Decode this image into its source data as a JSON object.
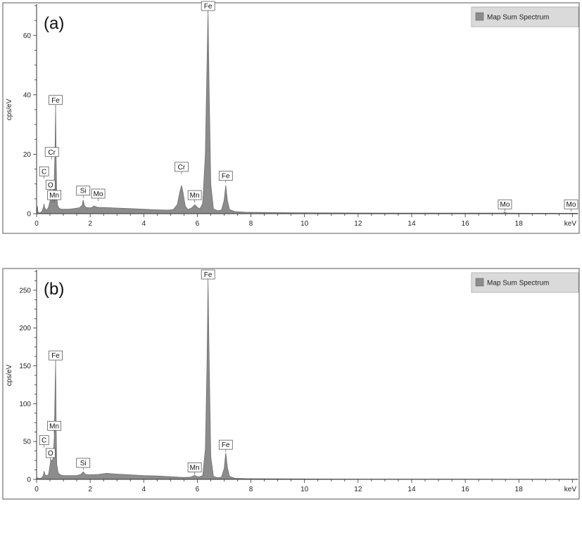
{
  "chart_data": [
    {
      "type": "area",
      "panel_label": "(a)",
      "legend": "Map Sum Spectrum",
      "ylabel": "cps/eV",
      "xunit": "keV",
      "xlim": [
        0,
        20.2
      ],
      "ylim": [
        0,
        70
      ],
      "xticks": [
        0,
        2,
        4,
        6,
        8,
        10,
        12,
        14,
        16,
        18
      ],
      "yticks": [
        0,
        20,
        40,
        60
      ],
      "fill_color": "#8c8c8c",
      "series": [
        {
          "x": [
            0,
            0.03,
            0.05,
            0.08,
            0.1,
            0.12,
            0.15,
            0.2,
            0.25,
            0.28,
            0.3,
            0.33,
            0.36,
            0.4,
            0.45,
            0.5,
            0.52,
            0.55,
            0.58,
            0.62,
            0.66,
            0.69,
            0.71,
            0.73,
            0.75,
            0.78,
            0.82,
            0.88,
            0.95,
            1.05,
            1.2,
            1.4,
            1.6,
            1.7,
            1.74,
            1.78,
            1.85,
            1.95,
            2.05,
            2.15,
            2.25,
            2.35,
            2.5,
            3.0,
            3.5,
            4.0,
            4.5,
            4.9,
            5.1,
            5.25,
            5.35,
            5.41,
            5.47,
            5.55,
            5.65,
            5.8,
            5.9,
            5.99,
            6.1,
            6.2,
            6.3,
            6.36,
            6.4,
            6.44,
            6.5,
            6.6,
            6.75,
            6.9,
            7.0,
            7.06,
            7.12,
            7.2,
            7.4,
            7.8,
            8.5,
            9.5,
            11,
            13,
            15,
            17.4,
            17.48,
            17.56,
            18.5,
            20.2
          ],
          "y": [
            0.4,
            2.5,
            0.8,
            0.3,
            0.2,
            0.3,
            0.4,
            0.8,
            2.0,
            3.3,
            2.0,
            1.6,
            1.2,
            1.4,
            2.3,
            4.2,
            5.6,
            4.6,
            3.8,
            7.2,
            11.5,
            22.5,
            36.0,
            18.0,
            6.5,
            3.0,
            2.0,
            1.6,
            1.5,
            1.5,
            1.5,
            1.7,
            2.0,
            2.8,
            4.6,
            2.8,
            2.1,
            2.0,
            2.0,
            2.6,
            2.2,
            2.1,
            2.1,
            1.9,
            1.7,
            1.5,
            1.3,
            1.2,
            1.4,
            3.0,
            7.5,
            9.5,
            7.0,
            2.5,
            1.4,
            2.0,
            3.0,
            2.2,
            1.6,
            3.5,
            20.0,
            50.0,
            68.0,
            42.0,
            10.0,
            1.6,
            1.0,
            1.2,
            4.5,
            9.5,
            4.5,
            1.4,
            0.7,
            0.5,
            0.4,
            0.3,
            0.25,
            0.2,
            0.2,
            0.2,
            0.45,
            0.2,
            0.15,
            0.15
          ]
        }
      ],
      "peak_labels": [
        {
          "text": "Fe",
          "x": 6.4,
          "y": 68.0
        },
        {
          "text": "Fe",
          "x": 0.71,
          "y": 36.0
        },
        {
          "text": "Cr",
          "x": 0.57,
          "y": 18.5
        },
        {
          "text": "C",
          "x": 0.28,
          "y": 12.0
        },
        {
          "text": "O",
          "x": 0.52,
          "y": 7.5
        },
        {
          "text": "Mn",
          "x": 0.66,
          "y": 4.0
        },
        {
          "text": "Si",
          "x": 1.74,
          "y": 5.5
        },
        {
          "text": "Mo",
          "x": 2.3,
          "y": 4.5
        },
        {
          "text": "Cr",
          "x": 5.41,
          "y": 13.5
        },
        {
          "text": "Mn",
          "x": 5.9,
          "y": 4.0
        },
        {
          "text": "Fe",
          "x": 7.06,
          "y": 10.5
        },
        {
          "text": "Mo",
          "x": 17.48,
          "y": 0.9
        },
        {
          "text": "Mo",
          "x": 19.95,
          "y": 0.9
        }
      ]
    },
    {
      "type": "area",
      "panel_label": "(b)",
      "legend": "Map Sum Spectrum",
      "ylabel": "cps/eV",
      "xunit": "keV",
      "xlim": [
        0,
        20.2
      ],
      "ylim": [
        0,
        275
      ],
      "xticks": [
        0,
        2,
        4,
        6,
        8,
        10,
        12,
        14,
        16,
        18
      ],
      "yticks": [
        0,
        50,
        100,
        150,
        200,
        250
      ],
      "fill_color": "#8c8c8c",
      "series": [
        {
          "x": [
            0,
            0.05,
            0.1,
            0.15,
            0.2,
            0.25,
            0.28,
            0.31,
            0.35,
            0.4,
            0.45,
            0.5,
            0.53,
            0.57,
            0.62,
            0.66,
            0.69,
            0.71,
            0.73,
            0.75,
            0.8,
            0.88,
            1.0,
            1.2,
            1.5,
            1.65,
            1.74,
            1.82,
            2.0,
            2.3,
            2.6,
            3.0,
            3.5,
            4.0,
            4.5,
            5.0,
            5.5,
            5.75,
            5.9,
            6.05,
            6.2,
            6.3,
            6.36,
            6.4,
            6.44,
            6.5,
            6.6,
            6.75,
            6.9,
            7.0,
            7.06,
            7.12,
            7.2,
            7.4,
            7.8,
            8.5,
            10,
            12,
            14,
            16,
            18,
            20.2
          ],
          "y": [
            1,
            2,
            1,
            1.5,
            2.5,
            5,
            11,
            6,
            5,
            5,
            7,
            18,
            26,
            24,
            28,
            55,
            120,
            155,
            70,
            20,
            9,
            6,
            5,
            5,
            5,
            6.5,
            10,
            6.5,
            6,
            6.5,
            8,
            7,
            6,
            5,
            4.5,
            3.5,
            2.5,
            3,
            5,
            3,
            5,
            40,
            150,
            262,
            160,
            30,
            4,
            2,
            3,
            14,
            35,
            16,
            4,
            1.5,
            1,
            0.8,
            0.6,
            0.4,
            0.3,
            0.3,
            0.2,
            0.2
          ]
        }
      ],
      "peak_labels": [
        {
          "text": "Fe",
          "x": 6.4,
          "y": 262
        },
        {
          "text": "Fe",
          "x": 0.71,
          "y": 155
        },
        {
          "text": "C",
          "x": 0.28,
          "y": 43
        },
        {
          "text": "Mn",
          "x": 0.66,
          "y": 62
        },
        {
          "text": "O",
          "x": 0.52,
          "y": 26
        },
        {
          "text": "Si",
          "x": 1.74,
          "y": 13
        },
        {
          "text": "Mn",
          "x": 5.9,
          "y": 7
        },
        {
          "text": "Fe",
          "x": 7.06,
          "y": 37
        }
      ]
    }
  ]
}
